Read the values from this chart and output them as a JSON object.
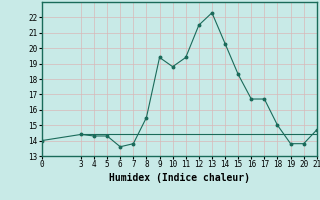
{
  "x": [
    0,
    3,
    4,
    5,
    6,
    7,
    8,
    9,
    10,
    11,
    12,
    13,
    14,
    15,
    16,
    17,
    18,
    19,
    20,
    21
  ],
  "y": [
    14,
    14.4,
    14.3,
    14.3,
    13.6,
    13.8,
    15.5,
    19.4,
    18.8,
    19.4,
    21.5,
    22.3,
    20.3,
    18.3,
    16.7,
    16.7,
    15.0,
    13.8,
    13.8,
    14.7
  ],
  "line_color": "#1a6b5a",
  "marker_color": "#1a6b5a",
  "bg_color": "#c8eae7",
  "grid_color": "#e8c8c8",
  "xlabel": "Humidex (Indice chaleur)",
  "ylim": [
    13,
    23
  ],
  "xlim": [
    0,
    21
  ],
  "yticks": [
    13,
    14,
    15,
    16,
    17,
    18,
    19,
    20,
    21,
    22
  ],
  "xticks": [
    0,
    3,
    4,
    5,
    6,
    7,
    8,
    9,
    10,
    11,
    12,
    13,
    14,
    15,
    16,
    17,
    18,
    19,
    20,
    21
  ],
  "tick_fontsize": 5.5,
  "xlabel_fontsize": 7,
  "horizontal_line_y": 14.4,
  "horizontal_line_x_start": 3,
  "horizontal_line_x_end": 21
}
